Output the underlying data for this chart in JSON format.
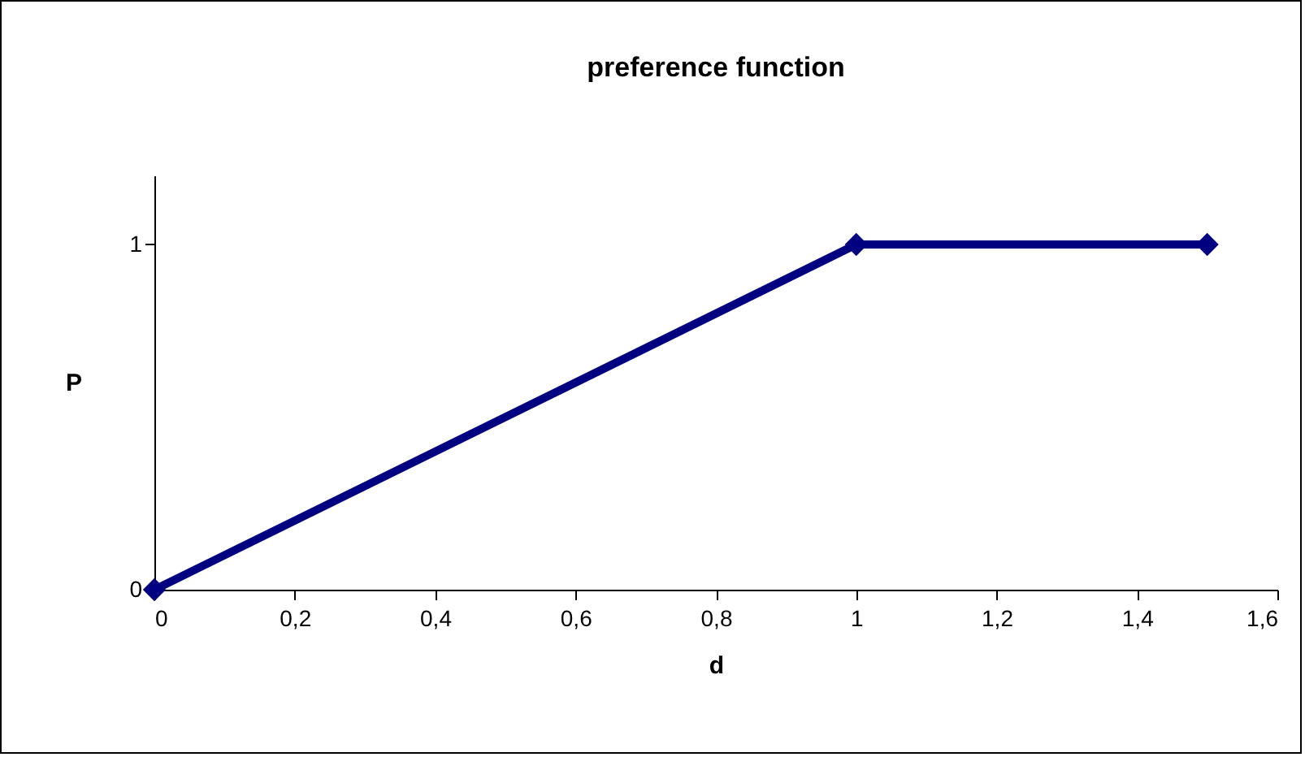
{
  "chart_data": {
    "type": "line",
    "title": "preference function",
    "xlabel": "d",
    "ylabel": "P",
    "x": [
      0,
      1,
      1.5
    ],
    "series": [
      {
        "color": "#000080",
        "values": [
          0,
          1,
          1
        ]
      }
    ],
    "xlim": [
      0,
      1.6
    ],
    "xticks": [
      0,
      {
        "value": 0.2,
        "label": "0,2"
      },
      {
        "value": 0.4,
        "label": "0,4"
      },
      {
        "value": 0.6,
        "label": "0,6"
      },
      {
        "value": 0.8,
        "label": "0,8"
      },
      1,
      {
        "value": 1.2,
        "label": "1,2"
      },
      {
        "value": 1.4,
        "label": "1,4"
      },
      {
        "value": 1.6,
        "label": "1,6"
      }
    ],
    "ylim": [
      0,
      1.2
    ],
    "yticks": [
      0,
      1
    ],
    "grid": false,
    "marker": "diamond",
    "line_style": "solid"
  }
}
